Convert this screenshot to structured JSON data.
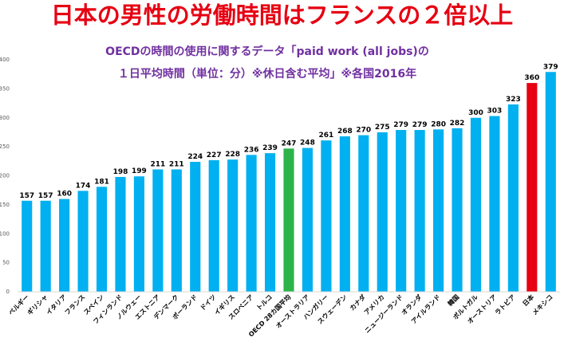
{
  "title": "日本の男性の労働時間はフランスの２倍以上",
  "subtitle_lines": [
    "OECDの時間の使用に関するデータ「paid work (all jobs)の",
    "１日平均時間（単位：分）※休日含む平均」※各国2016年"
  ],
  "colors": {
    "default_bar": "#00b0f0",
    "oecd_average_bar": "#2cb34a",
    "japan_bar": "#e60012",
    "title": "#e60012",
    "subtitle": "#7030a0"
  },
  "chart_data": {
    "type": "bar",
    "title": "",
    "xlabel": "",
    "ylabel": "",
    "ylim": [
      0,
      400
    ],
    "yticks": [
      0,
      50,
      100,
      150,
      200,
      250,
      300,
      350,
      400
    ],
    "grid": false,
    "legend": "none",
    "categories": [
      "ベルギー",
      "ギリシャ",
      "イタリア",
      "フランス",
      "スペイン",
      "フィンランド",
      "ノルウェー",
      "エストニア",
      "デンマーク",
      "ポーランド",
      "ドイツ",
      "イギリス",
      "スロベニア",
      "トルコ",
      "OECD 28カ国平均",
      "オーストラリア",
      "ハンガリー",
      "スウェーデン",
      "カナダ",
      "アメリカ",
      "ニュージーランド",
      "オランダ",
      "アイルランド",
      "韓国",
      "ポルトガル",
      "オーストリア",
      "ラトビア",
      "日本",
      "メキシコ"
    ],
    "values": [
      157,
      157,
      160,
      174,
      181,
      198,
      199,
      211,
      211,
      224,
      227,
      228,
      236,
      239,
      247,
      248,
      261,
      268,
      270,
      275,
      279,
      279,
      280,
      282,
      300,
      303,
      323,
      360,
      379
    ],
    "highlight": {
      "OECD 28カ国平均": "#2cb34a",
      "日本": "#e60012"
    }
  }
}
